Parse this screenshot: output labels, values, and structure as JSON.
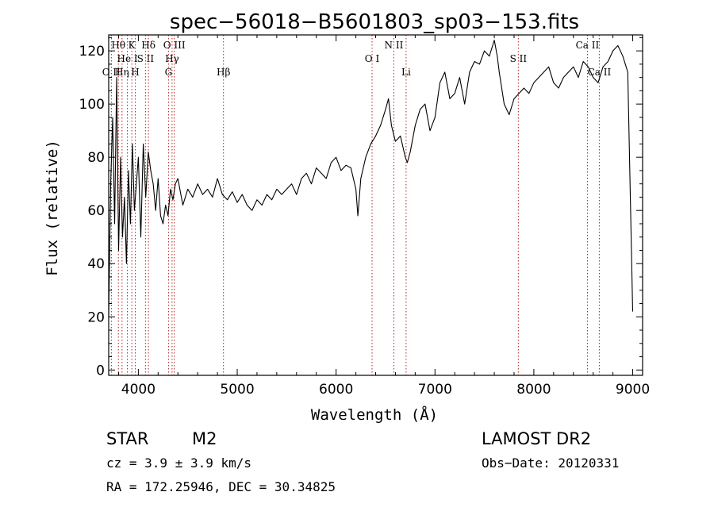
{
  "chart_data": {
    "type": "line",
    "title": "spec−56018−B5601803_sp03−153.fits",
    "xlabel": "Wavelength (Å)",
    "ylabel": "Flux (relative)",
    "xlim": [
      3700,
      9100
    ],
    "ylim": [
      -2,
      126
    ],
    "xticks": [
      4000,
      5000,
      6000,
      7000,
      8000,
      9000
    ],
    "yticks": [
      0,
      20,
      40,
      60,
      80,
      100,
      120
    ],
    "grid": false,
    "line_color": "#000000",
    "marker_color": "#b22222",
    "spectral_lines": [
      {
        "label": "O II",
        "wavelength": 3727,
        "row": 2
      },
      {
        "label": "Hθ",
        "wavelength": 3798,
        "row": 0
      },
      {
        "label": "Hη",
        "wavelength": 3835,
        "row": 2
      },
      {
        "label": "He I",
        "wavelength": 3889,
        "row": 1
      },
      {
        "label": "K",
        "wavelength": 3934,
        "row": 0
      },
      {
        "label": "H",
        "wavelength": 3969,
        "row": 2
      },
      {
        "label": "S II",
        "wavelength": 4072,
        "row": 1
      },
      {
        "label": "Hδ",
        "wavelength": 4102,
        "row": 0
      },
      {
        "label": "G",
        "wavelength": 4305,
        "row": 2
      },
      {
        "label": "Hγ",
        "wavelength": 4341,
        "row": 1
      },
      {
        "label": "O III",
        "wavelength": 4363,
        "row": 0
      },
      {
        "label": "Hβ",
        "wavelength": 4861,
        "row": 2
      },
      {
        "label": "O I",
        "wavelength": 6364,
        "row": 1
      },
      {
        "label": "N II",
        "wavelength": 6584,
        "row": 0
      },
      {
        "label": "Li",
        "wavelength": 6708,
        "row": 2
      },
      {
        "label": "S II",
        "wavelength": 7843,
        "row": 1
      },
      {
        "label": "Ca II",
        "wavelength": 8542,
        "row": 0
      },
      {
        "label": "Ca II",
        "wavelength": 8662,
        "row": 2
      }
    ],
    "series": [
      {
        "x": [
          3700,
          3720,
          3740,
          3760,
          3780,
          3800,
          3820,
          3840,
          3860,
          3880,
          3900,
          3920,
          3940,
          3960,
          3980,
          4000,
          4025,
          4050,
          4075,
          4100,
          4125,
          4150,
          4175,
          4200,
          4225,
          4250,
          4275,
          4300,
          4325,
          4350,
          4375,
          4400,
          4450,
          4500,
          4550,
          4600,
          4650,
          4700,
          4750,
          4800,
          4850,
          4900,
          4950,
          5000,
          5050,
          5100,
          5150,
          5200,
          5250,
          5300,
          5350,
          5400,
          5450,
          5500,
          5550,
          5600,
          5650,
          5700,
          5750,
          5800,
          5850,
          5900,
          5950,
          6000,
          6050,
          6100,
          6150,
          6200,
          6220,
          6250,
          6300,
          6350,
          6400,
          6450,
          6500,
          6530,
          6560,
          6600,
          6650,
          6700,
          6720,
          6750,
          6800,
          6850,
          6900,
          6950,
          7000,
          7050,
          7100,
          7150,
          7200,
          7250,
          7300,
          7350,
          7400,
          7450,
          7500,
          7550,
          7600,
          7630,
          7650,
          7700,
          7750,
          7800,
          7850,
          7900,
          7950,
          8000,
          8050,
          8100,
          8150,
          8200,
          8250,
          8300,
          8350,
          8400,
          8450,
          8500,
          8550,
          8600,
          8650,
          8700,
          8750,
          8800,
          8850,
          8900,
          8950,
          9000
        ],
        "y": [
          20,
          70,
          95,
          55,
          110,
          45,
          80,
          50,
          65,
          40,
          75,
          55,
          85,
          60,
          70,
          80,
          50,
          85,
          65,
          82,
          75,
          70,
          60,
          72,
          58,
          55,
          62,
          58,
          68,
          64,
          70,
          72,
          62,
          68,
          65,
          70,
          66,
          68,
          65,
          72,
          66,
          64,
          67,
          63,
          66,
          62,
          60,
          64,
          62,
          66,
          64,
          68,
          66,
          68,
          70,
          66,
          72,
          74,
          70,
          76,
          74,
          72,
          78,
          80,
          75,
          77,
          76,
          68,
          58,
          72,
          80,
          85,
          88,
          92,
          98,
          102,
          92,
          86,
          88,
          80,
          78,
          82,
          92,
          98,
          100,
          90,
          95,
          108,
          112,
          102,
          104,
          110,
          100,
          112,
          116,
          115,
          120,
          118,
          124,
          118,
          112,
          100,
          96,
          102,
          104,
          106,
          104,
          108,
          110,
          112,
          114,
          108,
          106,
          110,
          112,
          114,
          110,
          116,
          114,
          110,
          108,
          114,
          116,
          120,
          122,
          118,
          112,
          22
        ]
      }
    ],
    "annotations": {
      "object_class": "STAR",
      "subclass": "M2",
      "survey": "LAMOST DR2",
      "cz": "cz = 3.9 ± 3.9 km/s",
      "obs_date": "Obs−Date: 20120331",
      "coords": "RA = 172.25946, DEC =  30.34825"
    }
  }
}
